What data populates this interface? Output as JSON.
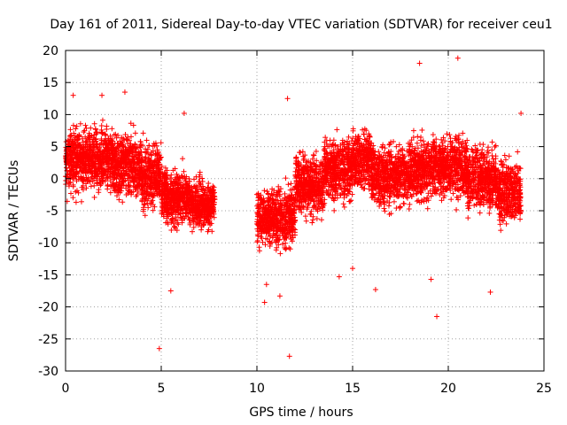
{
  "chart_data": {
    "type": "scatter",
    "title": "Day 161 of 2011, Sidereal Day-to-day VTEC variation (SDTVAR) for receiver ceu1",
    "xlabel": "GPS time / hours",
    "ylabel": "SDTVAR / TECUs",
    "xlim": [
      0,
      25
    ],
    "ylim": [
      -30,
      20
    ],
    "xticks": [
      0,
      5,
      10,
      15,
      20,
      25
    ],
    "yticks": [
      -30,
      -25,
      -20,
      -15,
      -10,
      -5,
      0,
      5,
      10,
      15,
      20
    ],
    "xtick_labels": [
      "0",
      "5",
      "10",
      "15",
      "20",
      "25"
    ],
    "ytick_labels": [
      "-30",
      "-25",
      "-20",
      "-15",
      "-10",
      "-5",
      "0",
      "5",
      "10",
      "15",
      "20"
    ],
    "grid": true,
    "marker": "+",
    "color": "#ff0000",
    "series": [
      {
        "name": "SDTVAR",
        "description_segments": [
          {
            "x_range": [
              0.0,
              1.0
            ],
            "y_center": 3.0,
            "y_spread": 4.5
          },
          {
            "x_range": [
              1.0,
              2.5
            ],
            "y_center": 3.0,
            "y_spread": 4.5
          },
          {
            "x_range": [
              2.5,
              4.0
            ],
            "y_center": 2.0,
            "y_spread": 4.5
          },
          {
            "x_range": [
              4.0,
              5.0
            ],
            "y_center": 0.5,
            "y_spread": 4.5
          },
          {
            "x_range": [
              5.0,
              6.5
            ],
            "y_center": -3.0,
            "y_spread": 4.0
          },
          {
            "x_range": [
              6.5,
              7.8
            ],
            "y_center": -4.0,
            "y_spread": 3.5
          },
          {
            "x_range": [
              10.0,
              11.0
            ],
            "y_center": -6.0,
            "y_spread": 4.0
          },
          {
            "x_range": [
              11.0,
              12.0
            ],
            "y_center": -6.0,
            "y_spread": 4.5
          },
          {
            "x_range": [
              12.0,
              13.5
            ],
            "y_center": -1.0,
            "y_spread": 4.5
          },
          {
            "x_range": [
              13.5,
              15.0
            ],
            "y_center": 1.5,
            "y_spread": 4.5
          },
          {
            "x_range": [
              15.0,
              16.0
            ],
            "y_center": 3.0,
            "y_spread": 4.5
          },
          {
            "x_range": [
              16.0,
              18.0
            ],
            "y_center": 0.5,
            "y_spread": 4.5
          },
          {
            "x_range": [
              18.0,
              19.5
            ],
            "y_center": 1.5,
            "y_spread": 4.5
          },
          {
            "x_range": [
              19.5,
              21.0
            ],
            "y_center": 2.0,
            "y_spread": 4.5
          },
          {
            "x_range": [
              21.0,
              22.5
            ],
            "y_center": 0.0,
            "y_spread": 4.5
          },
          {
            "x_range": [
              22.5,
              23.8
            ],
            "y_center": -2.0,
            "y_spread": 4.5
          }
        ],
        "outliers": [
          {
            "x": 0.4,
            "y": 13.0
          },
          {
            "x": 1.9,
            "y": 13.0
          },
          {
            "x": 3.1,
            "y": 13.5
          },
          {
            "x": 6.2,
            "y": 10.2
          },
          {
            "x": 4.9,
            "y": -26.5
          },
          {
            "x": 5.5,
            "y": -17.5
          },
          {
            "x": 10.4,
            "y": -19.3
          },
          {
            "x": 10.5,
            "y": -16.5
          },
          {
            "x": 11.2,
            "y": -18.3
          },
          {
            "x": 11.6,
            "y": 12.5
          },
          {
            "x": 11.7,
            "y": -27.7
          },
          {
            "x": 14.3,
            "y": -15.3
          },
          {
            "x": 15.0,
            "y": -14.0
          },
          {
            "x": 16.2,
            "y": -17.3
          },
          {
            "x": 18.5,
            "y": 18.0
          },
          {
            "x": 19.1,
            "y": -15.7
          },
          {
            "x": 19.4,
            "y": -21.5
          },
          {
            "x": 20.5,
            "y": 18.8
          },
          {
            "x": 22.2,
            "y": -17.7
          },
          {
            "x": 23.8,
            "y": 10.2
          }
        ]
      }
    ]
  }
}
